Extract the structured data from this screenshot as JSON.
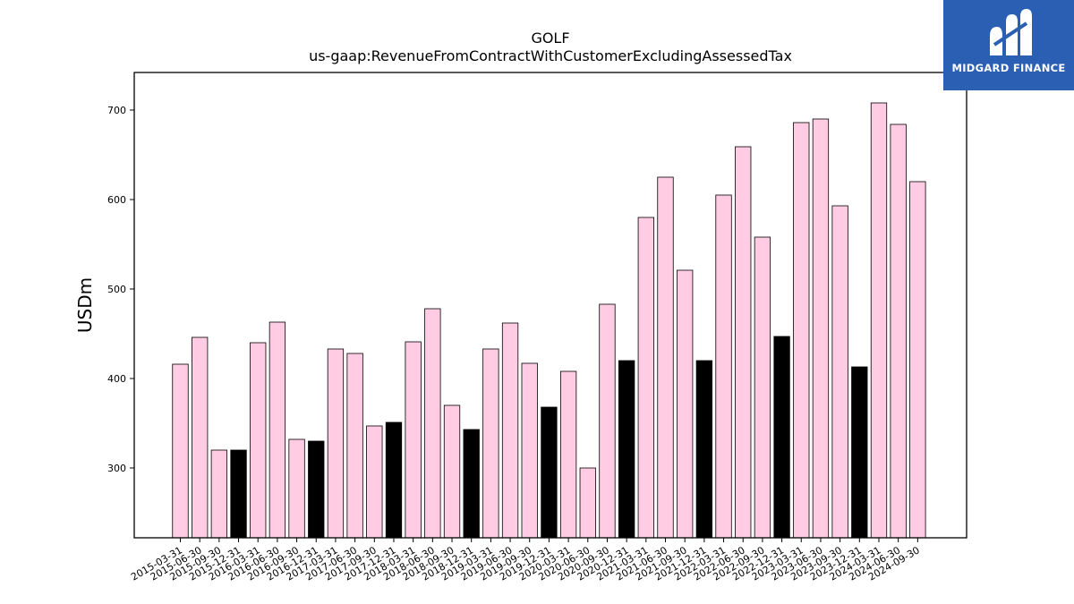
{
  "chart_data": {
    "type": "bar",
    "title": "GOLF",
    "subtitle": "us-gaap:RevenueFromContractWithCustomerExcludingAssessedTax",
    "ylabel": "USDm",
    "ylim": [
      222,
      742
    ],
    "yticks": [
      300,
      400,
      500,
      600,
      700
    ],
    "grid": false,
    "categories": [
      "2015-03-31",
      "2015-06-30",
      "2015-09-30",
      "2015-12-31",
      "2016-03-31",
      "2016-06-30",
      "2016-09-30",
      "2016-12-31",
      "2017-03-31",
      "2017-06-30",
      "2017-09-30",
      "2017-12-31",
      "2018-03-31",
      "2018-06-30",
      "2018-09-30",
      "2018-12-31",
      "2019-03-31",
      "2019-06-30",
      "2019-09-30",
      "2019-12-31",
      "2020-03-31",
      "2020-06-30",
      "2020-09-30",
      "2020-12-31",
      "2021-03-31",
      "2021-06-30",
      "2021-09-30",
      "2021-12-31",
      "2022-03-31",
      "2022-06-30",
      "2022-09-30",
      "2022-12-31",
      "2023-03-31",
      "2023-06-30",
      "2023-09-30",
      "2023-12-31",
      "2024-03-31",
      "2024-06-30",
      "2024-09-30"
    ],
    "values": [
      416,
      446,
      320,
      320,
      440,
      463,
      332,
      330,
      433,
      428,
      347,
      351,
      441,
      478,
      370,
      343,
      433,
      462,
      417,
      368,
      408,
      300,
      483,
      420,
      580,
      625,
      521,
      420,
      605,
      659,
      558,
      447,
      686,
      690,
      593,
      413,
      708,
      684,
      620
    ],
    "highlight_quarter": "12-31",
    "colors": {
      "bar": "#ffcce4",
      "highlight": "#000000",
      "edge": "#000000"
    }
  },
  "logo": {
    "text": "MIDGARD FINANCE",
    "background": "#2a5fb4"
  }
}
